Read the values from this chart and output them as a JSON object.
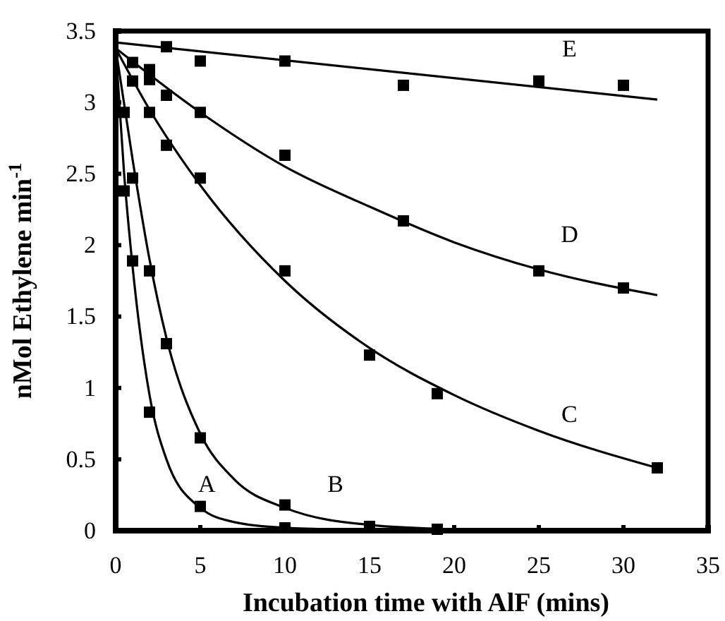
{
  "chart_data": {
    "type": "scatter",
    "xlabel": "Incubation time with AlF (mins)",
    "ylabel": "nMol Ethylene min$^{-1}$",
    "xlim": [
      0,
      35
    ],
    "ylim": [
      0,
      3.5
    ],
    "xticks": [
      0,
      5,
      10,
      15,
      20,
      25,
      30,
      35
    ],
    "yticks": [
      0,
      0.5,
      1,
      1.5,
      2,
      2.5,
      3,
      3.5
    ],
    "grid": false,
    "marker": "square",
    "series": [
      {
        "color": "#000000",
        "x": [
          0.5,
          1,
          2,
          5,
          10
        ],
        "values": [
          2.38,
          1.89,
          0.83,
          0.17,
          0.02
        ]
      },
      {
        "color": "#000000",
        "x": [
          0.5,
          1,
          2,
          3,
          5,
          10,
          15,
          19
        ],
        "values": [
          2.93,
          2.47,
          1.82,
          1.31,
          0.65,
          0.18,
          0.03,
          0.01
        ]
      },
      {
        "color": "#000000",
        "x": [
          1,
          2,
          3,
          5,
          10,
          15,
          19,
          32
        ],
        "values": [
          3.15,
          2.93,
          2.7,
          2.47,
          1.82,
          1.23,
          0.96,
          0.44
        ]
      },
      {
        "color": "#000000",
        "x": [
          1,
          2,
          2,
          3,
          5,
          10,
          17,
          25,
          30
        ],
        "values": [
          3.28,
          3.16,
          3.23,
          3.05,
          2.93,
          2.63,
          2.17,
          1.82,
          1.7
        ]
      },
      {
        "color": "#000000",
        "x": [
          3,
          5,
          10,
          17,
          25,
          30
        ],
        "values": [
          3.39,
          3.29,
          3.29,
          3.12,
          3.15,
          3.12
        ]
      },
      {
        "type": "line",
        "name": "A",
        "marker": "none",
        "color": "#000000",
        "x": [
          0,
          0.5,
          1,
          2,
          3,
          5,
          7,
          10,
          13
        ],
        "values": [
          3.38,
          2.5,
          1.85,
          0.95,
          0.5,
          0.16,
          0.06,
          0.02,
          0.01
        ]
      },
      {
        "type": "line",
        "name": "B",
        "marker": "none",
        "color": "#000000",
        "x": [
          0,
          1,
          2,
          3,
          5,
          7,
          10,
          15,
          20
        ],
        "values": [
          3.38,
          2.6,
          1.9,
          1.35,
          0.68,
          0.36,
          0.16,
          0.04,
          0.01
        ]
      },
      {
        "type": "line",
        "name": "C",
        "marker": "none",
        "color": "#000000",
        "x": [
          0,
          2,
          5,
          10,
          15,
          20,
          25,
          32
        ],
        "values": [
          3.38,
          2.95,
          2.42,
          1.75,
          1.28,
          0.95,
          0.7,
          0.44
        ]
      },
      {
        "type": "line",
        "name": "D",
        "marker": "none",
        "color": "#000000",
        "x": [
          0,
          5,
          10,
          15,
          20,
          25,
          32
        ],
        "values": [
          3.38,
          2.93,
          2.55,
          2.27,
          2.02,
          1.83,
          1.65
        ]
      },
      {
        "type": "line",
        "name": "E",
        "marker": "none",
        "color": "#000000",
        "x": [
          0,
          32
        ],
        "values": [
          3.42,
          3.02
        ]
      }
    ]
  }
}
